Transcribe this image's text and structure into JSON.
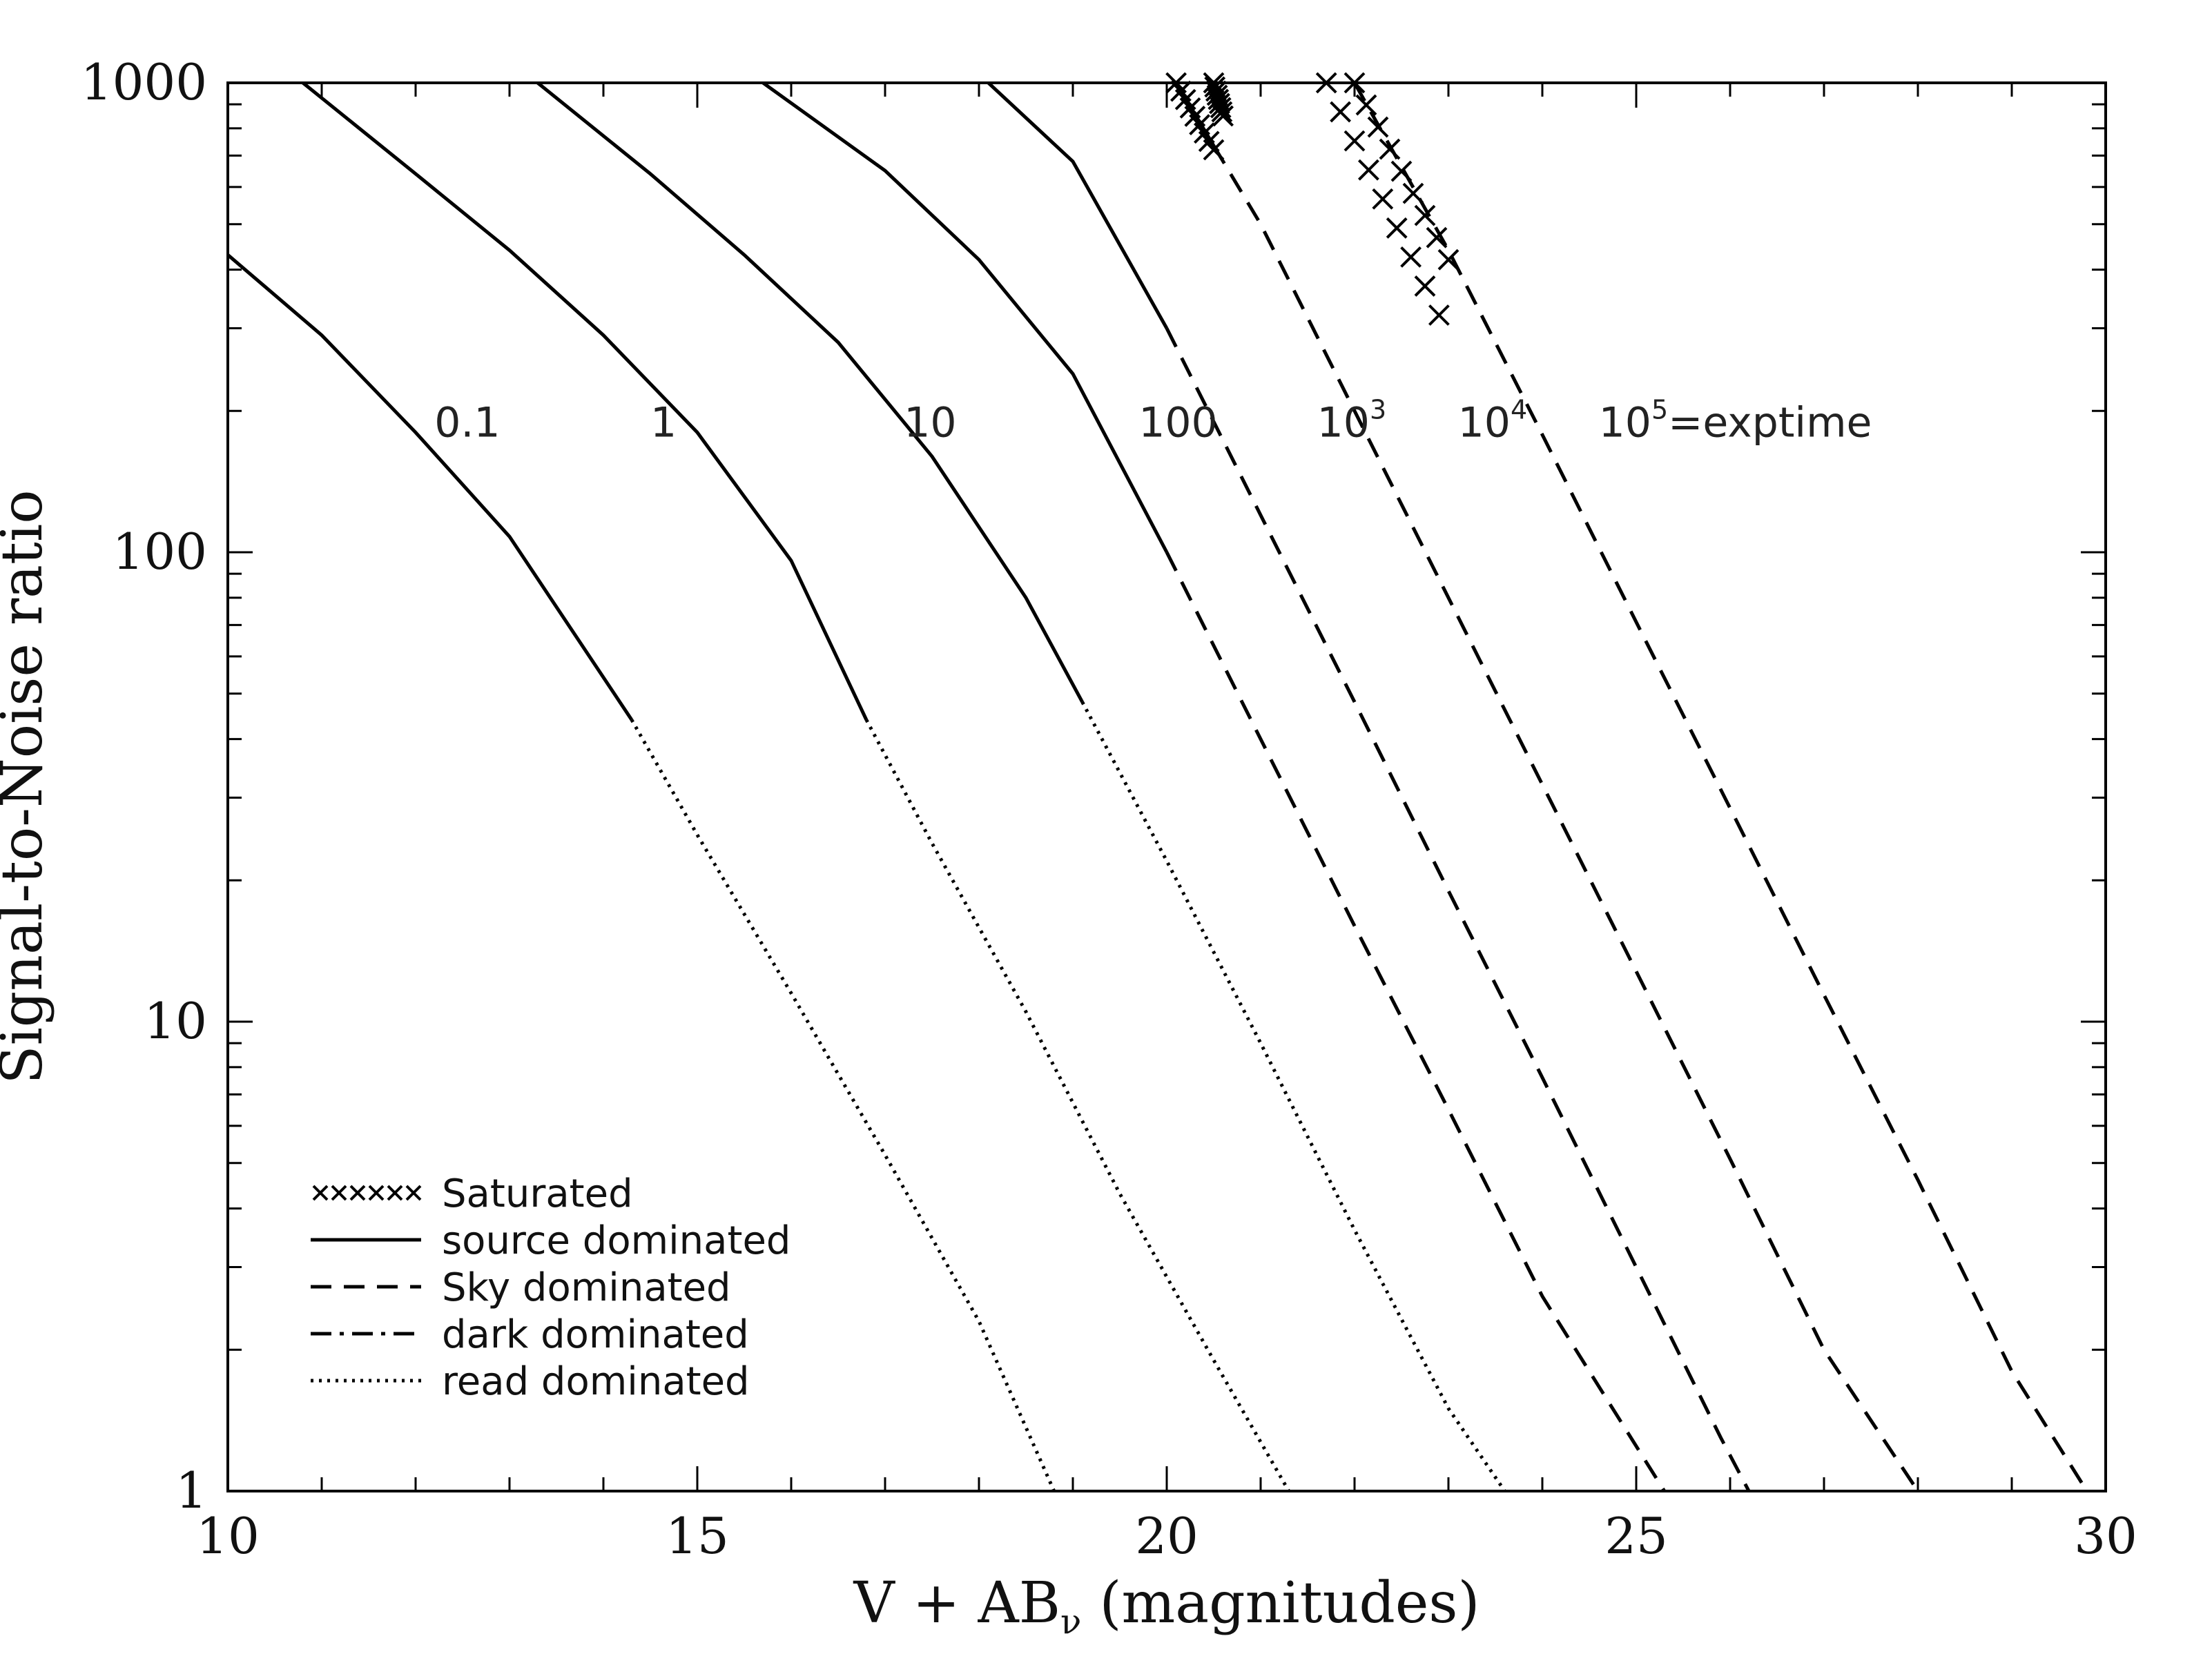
{
  "chart_data": {
    "type": "line",
    "xlabel_parts": [
      "V + AB",
      "ν",
      " (magnitudes)"
    ],
    "ylabel": "Signal-to-Noise ratio",
    "xlim": [
      10,
      30
    ],
    "ylim": [
      1,
      1000
    ],
    "yscale": "log",
    "x_ticks": [
      "10",
      "15",
      "20",
      "25",
      "30"
    ],
    "y_ticks": [
      "1",
      "10",
      "100",
      "1000"
    ],
    "series": [
      {
        "name": "0.1",
        "points": [
          [
            10.0,
            430
          ],
          [
            11.0,
            290
          ],
          [
            12.0,
            180
          ],
          [
            13.0,
            108
          ],
          [
            14.3,
            44
          ],
          [
            15.0,
            25
          ],
          [
            16.0,
            11.5
          ],
          [
            17.0,
            5.2
          ],
          [
            18.0,
            2.3
          ],
          [
            18.8,
            1.0
          ]
        ],
        "source_end": 14.3,
        "sky_end": null
      },
      {
        "name": "1",
        "points": [
          [
            10.8,
            1000
          ],
          [
            12.0,
            640
          ],
          [
            13.0,
            440
          ],
          [
            14.0,
            290
          ],
          [
            15.0,
            180
          ],
          [
            16.0,
            96
          ],
          [
            16.8,
            44
          ],
          [
            17.5,
            24
          ],
          [
            18.5,
            10.5
          ],
          [
            19.5,
            4.3
          ],
          [
            20.5,
            1.9
          ],
          [
            21.3,
            1.0
          ]
        ],
        "source_end": 16.8,
        "sky_end": null
      },
      {
        "name": "10",
        "points": [
          [
            13.3,
            1000
          ],
          [
            14.5,
            640
          ],
          [
            15.5,
            430
          ],
          [
            16.5,
            280
          ],
          [
            17.5,
            160
          ],
          [
            18.5,
            80
          ],
          [
            19.1,
            48
          ],
          [
            20.0,
            22
          ],
          [
            21.0,
            9.0
          ],
          [
            22.0,
            3.6
          ],
          [
            23.0,
            1.5
          ],
          [
            23.6,
            1.0
          ]
        ],
        "source_end": 19.1,
        "sky_end": null
      },
      {
        "name": "100",
        "points": [
          [
            15.7,
            1000
          ],
          [
            17.0,
            650
          ],
          [
            18.0,
            420
          ],
          [
            19.0,
            240
          ],
          [
            20.0,
            100
          ],
          [
            21.0,
            40
          ],
          [
            22.0,
            16
          ],
          [
            23.0,
            6.5
          ],
          [
            24.0,
            2.6
          ],
          [
            25.3,
            1.0
          ]
        ],
        "source_end": 20.0,
        "sky_end": 30
      },
      {
        "name": "10³",
        "points": [
          [
            18.1,
            1000
          ],
          [
            19.0,
            680
          ],
          [
            20.0,
            300
          ],
          [
            21.0,
            120
          ],
          [
            22.0,
            48
          ],
          [
            23.0,
            19
          ],
          [
            24.0,
            7.6
          ],
          [
            25.0,
            3.0
          ],
          [
            25.9,
            1.3
          ],
          [
            26.2,
            1.0
          ]
        ],
        "source_end": 20.0,
        "sky_end": 30
      },
      {
        "name": "10⁴",
        "points": [
          [
            20.1,
            1000
          ],
          [
            21.0,
            500
          ],
          [
            22.0,
            200
          ],
          [
            23.0,
            80
          ],
          [
            24.0,
            32
          ],
          [
            25.0,
            12.8
          ],
          [
            26.0,
            5.1
          ],
          [
            27.0,
            2.0
          ],
          [
            28.0,
            1.0
          ]
        ],
        "source_end": 20.5,
        "sky_end": 30
      },
      {
        "name": "10⁵",
        "points": [
          [
            22.0,
            1000
          ],
          [
            23.0,
            440
          ],
          [
            24.0,
            178
          ],
          [
            25.0,
            71
          ],
          [
            26.0,
            28.5
          ],
          [
            27.0,
            11.4
          ],
          [
            28.0,
            4.6
          ],
          [
            29.0,
            1.8
          ],
          [
            29.8,
            1.0
          ]
        ],
        "source_end": 22.0,
        "sky_end": 30
      }
    ],
    "curve_labels": [
      {
        "text": "0.1",
        "x": 12.2,
        "y": 190
      },
      {
        "text": "1",
        "x": 14.5,
        "y": 190
      },
      {
        "text": "10",
        "x": 17.2,
        "y": 190
      },
      {
        "text": "100",
        "x": 19.7,
        "y": 190
      },
      {
        "text": "10",
        "sup": "3",
        "x": 21.6,
        "y": 190
      },
      {
        "text": "10",
        "sup": "4",
        "x": 23.1,
        "y": 190
      },
      {
        "text": "10",
        "sup": "5",
        "suffix": "=exptime",
        "x": 24.6,
        "y": 190
      }
    ],
    "saturated": [
      {
        "x0": 20.1,
        "y0": 1000,
        "x1": 20.5,
        "y1": 720
      },
      {
        "x0": 20.5,
        "y0": 1000,
        "x1": 20.6,
        "y1": 850
      },
      {
        "x0": 21.7,
        "y0": 1000,
        "x1": 22.9,
        "y1": 320
      },
      {
        "x0": 22.0,
        "y0": 1000,
        "x1": 23.0,
        "y1": 420
      }
    ],
    "legend": {
      "placement": "bottom-left",
      "items": [
        {
          "label": "Saturated",
          "style": "saturated"
        },
        {
          "label": "source dominated",
          "style": "source"
        },
        {
          "label": "Sky dominated",
          "style": "sky"
        },
        {
          "label": "dark dominated",
          "style": "dark"
        },
        {
          "label": "read dominated",
          "style": "read"
        }
      ]
    },
    "grid": false
  }
}
